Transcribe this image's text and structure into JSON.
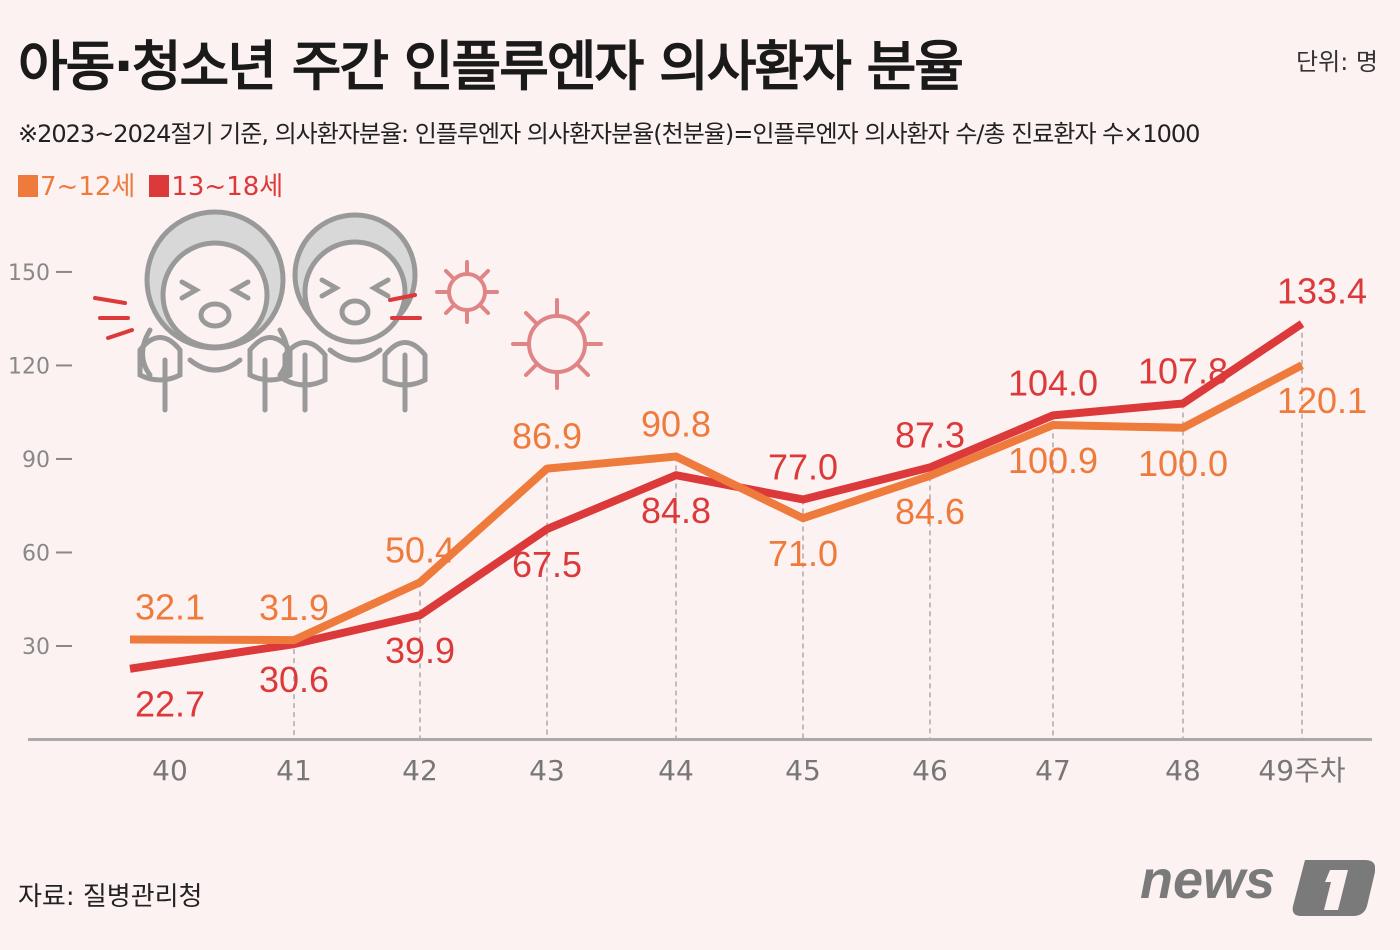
{
  "header": {
    "title": "아동·청소년 주간 인플루엔자 의사환자 분율",
    "unit": "단위: 명",
    "note": "※2023~2024절기 기준, 의사환자분율: 인플루엔자 의사환자분율(천분율)=인플루엔자 의사환자 수/총 진료환자 수×1000"
  },
  "footer": {
    "source": "자료: 질병관리청",
    "logo": "news1"
  },
  "colors": {
    "age_7_12": "#ee7b3c",
    "age_13_18": "#dc3a3a",
    "background": "#fdf2f2"
  },
  "chart_data": {
    "type": "line",
    "categories": [
      "40",
      "41",
      "42",
      "43",
      "44",
      "45",
      "46",
      "47",
      "48",
      "49주차"
    ],
    "series": [
      {
        "name": "7~12세",
        "color": "#ee7b3c",
        "values": [
          32.1,
          31.9,
          50.4,
          86.9,
          90.8,
          71.0,
          84.6,
          100.9,
          100.0,
          120.1
        ]
      },
      {
        "name": "13~18세",
        "color": "#dc3a3a",
        "values": [
          22.7,
          30.6,
          39.9,
          67.5,
          84.8,
          77.0,
          87.3,
          104.0,
          107.8,
          133.4
        ]
      }
    ],
    "value_labels": [
      [
        "32.1",
        "31.9",
        "50.4",
        "86.9",
        "90.8",
        "71.0",
        "84.6",
        "100.9",
        "100.0",
        "120.1"
      ],
      [
        "22.7",
        "30.6",
        "39.9",
        "67.5",
        "84.8",
        "77.0",
        "87.3",
        "104.0",
        "107.8",
        "133.4"
      ]
    ],
    "yticks": [
      "30",
      "60",
      "90",
      "120",
      "150"
    ],
    "ytick_values": [
      30,
      60,
      90,
      120,
      150
    ],
    "ylim": [
      0,
      150
    ],
    "legend": "top-left",
    "grid": "dashed vertical lines at each week"
  }
}
